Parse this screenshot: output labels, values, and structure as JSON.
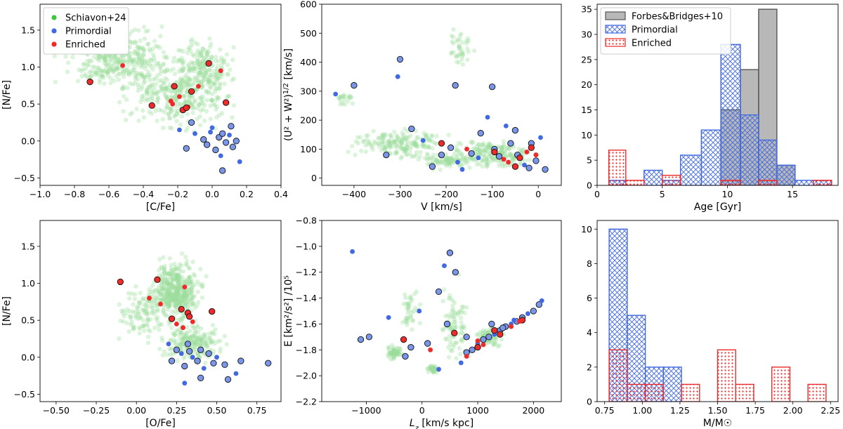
{
  "colors": {
    "green": "#3cc63c",
    "green_faint": "#9bdc9b",
    "blue": "#4169e1",
    "blue_light": "#7a96e8",
    "red": "#ee2a2a",
    "grey": "#b5b5b5"
  },
  "chart_data": [
    {
      "type": "scatter",
      "id": "a",
      "xlabel": "[C/Fe]",
      "ylabel": "[N/Fe]",
      "xlim": [
        -1.0,
        0.4
      ],
      "ylim": [
        -0.6,
        1.85
      ],
      "xticks": [
        "-1.0",
        "-0.8",
        "-0.6",
        "-0.4",
        "-0.2",
        "0.0",
        "0.2",
        "0.4"
      ],
      "yticks": [
        "-0.5",
        "0.0",
        "0.5",
        "1.0",
        "1.5"
      ],
      "legend": [
        "Schiavon+24",
        "Primordial",
        "Enriched"
      ],
      "enriched": [
        [
          -0.71,
          0.8
        ],
        [
          -0.52,
          1.02
        ],
        [
          -0.35,
          0.48
        ],
        [
          -0.24,
          0.54
        ],
        [
          -0.22,
          0.74
        ],
        [
          -0.19,
          0.6
        ],
        [
          -0.17,
          0.42
        ],
        [
          -0.14,
          0.46
        ],
        [
          -0.12,
          0.67
        ],
        [
          -0.08,
          0.74
        ],
        [
          -0.02,
          1.05
        ],
        [
          0.05,
          0.95
        ],
        [
          0.08,
          0.52
        ],
        [
          -0.23,
          0.5
        ],
        [
          -0.15,
          0.45
        ]
      ],
      "primordial": [
        [
          -0.19,
          0.15
        ],
        [
          -0.15,
          -0.1
        ],
        [
          -0.12,
          0.25
        ],
        [
          -0.1,
          0.1
        ],
        [
          -0.05,
          0.02
        ],
        [
          -0.03,
          -0.05
        ],
        [
          0.0,
          0.18
        ],
        [
          0.02,
          -0.12
        ],
        [
          0.04,
          0.05
        ],
        [
          0.05,
          -0.2
        ],
        [
          0.06,
          0.1
        ],
        [
          0.08,
          -0.02
        ],
        [
          0.1,
          0.08
        ],
        [
          0.12,
          -0.08
        ],
        [
          0.14,
          0.0
        ],
        [
          0.16,
          -0.28
        ],
        [
          0.06,
          -0.4
        ],
        [
          0.11,
          0.2
        ],
        [
          -0.01,
          0.12
        ]
      ]
    },
    {
      "type": "scatter",
      "id": "b",
      "xlabel": "V [km/s]",
      "ylabel": "(U² + W²)^1/2 [km/s]",
      "xlim": [
        -470,
        50
      ],
      "ylim": [
        -25,
        600
      ],
      "xticks": [
        "-400",
        "-300",
        "-200",
        "-100",
        "0"
      ],
      "yticks": [
        "0",
        "100",
        "200",
        "300",
        "400",
        "500",
        "600"
      ],
      "enriched": [
        [
          -210,
          120
        ],
        [
          -155,
          100
        ],
        [
          -95,
          90
        ],
        [
          -65,
          55
        ],
        [
          -40,
          70
        ],
        [
          -25,
          90
        ],
        [
          -15,
          105
        ],
        [
          -5,
          80
        ],
        [
          -50,
          40
        ],
        [
          -75,
          65
        ]
      ],
      "primordial": [
        [
          -440,
          290
        ],
        [
          -400,
          320
        ],
        [
          -330,
          80
        ],
        [
          -305,
          350
        ],
        [
          -300,
          410
        ],
        [
          -275,
          170
        ],
        [
          -250,
          130
        ],
        [
          -210,
          80
        ],
        [
          -190,
          105
        ],
        [
          -175,
          55
        ],
        [
          -145,
          85
        ],
        [
          -125,
          155
        ],
        [
          -110,
          210
        ],
        [
          -95,
          100
        ],
        [
          -85,
          75
        ],
        [
          -70,
          180
        ],
        [
          -60,
          120
        ],
        [
          -45,
          80
        ],
        [
          -30,
          45
        ],
        [
          -15,
          120
        ],
        [
          -5,
          60
        ],
        [
          5,
          140
        ],
        [
          15,
          30
        ],
        [
          -180,
          320
        ],
        [
          -130,
          70
        ],
        [
          -230,
          40
        ],
        [
          -100,
          315
        ],
        [
          -165,
          30
        ],
        [
          -50,
          165
        ],
        [
          -20,
          35
        ]
      ]
    },
    {
      "type": "histogram",
      "id": "c",
      "xlabel": "Age [Gyr]",
      "ylabel": "",
      "xlim": [
        0,
        18.5
      ],
      "ylim": [
        0,
        36
      ],
      "xticks": [
        "0",
        "5",
        "10",
        "15"
      ],
      "yticks": [
        "0",
        "5",
        "10",
        "15",
        "20",
        "25",
        "30",
        "35"
      ],
      "legend": [
        "Forbes&Bridges+10",
        "Primordial",
        "Enriched"
      ],
      "series": [
        {
          "name": "Forbes&Bridges+10",
          "bins": [
            [
              9.5,
              11.0,
              15
            ],
            [
              11.0,
              12.4,
              23
            ],
            [
              12.4,
              13.8,
              35
            ],
            [
              13.8,
              15.2,
              4
            ]
          ]
        },
        {
          "name": "Primordial",
          "bins": [
            [
              0.9,
              2.2,
              1
            ],
            [
              3.6,
              5.0,
              3
            ],
            [
              5.0,
              6.4,
              1
            ],
            [
              6.4,
              8.0,
              6
            ],
            [
              8.0,
              9.5,
              11
            ],
            [
              9.5,
              11.0,
              28
            ],
            [
              11.0,
              12.4,
              14
            ],
            [
              12.4,
              13.8,
              9
            ],
            [
              13.8,
              15.2,
              4
            ],
            [
              15.2,
              16.6,
              1
            ],
            [
              16.6,
              18.0,
              1
            ]
          ]
        },
        {
          "name": "Enriched",
          "bins": [
            [
              0.9,
              2.2,
              7
            ],
            [
              2.2,
              3.6,
              1
            ],
            [
              5.0,
              6.4,
              2
            ],
            [
              9.5,
              11.0,
              1
            ],
            [
              12.4,
              13.8,
              1
            ],
            [
              16.6,
              18.0,
              1
            ]
          ]
        }
      ]
    },
    {
      "type": "scatter",
      "id": "d",
      "xlabel": "[O/Fe]",
      "ylabel": "[N/Fe]",
      "xlim": [
        -0.6,
        0.9
      ],
      "ylim": [
        -0.6,
        1.85
      ],
      "xticks": [
        "-0.50",
        "-0.25",
        "0.00",
        "0.25",
        "0.50",
        "0.75"
      ],
      "yticks": [
        "-0.5",
        "0.0",
        "0.5",
        "1.0",
        "1.5"
      ],
      "enriched": [
        [
          -0.1,
          1.02
        ],
        [
          0.08,
          0.8
        ],
        [
          0.13,
          1.05
        ],
        [
          0.15,
          0.72
        ],
        [
          0.22,
          0.52
        ],
        [
          0.25,
          0.45
        ],
        [
          0.28,
          0.65
        ],
        [
          0.3,
          0.95
        ],
        [
          0.32,
          0.6
        ],
        [
          0.35,
          0.48
        ],
        [
          0.47,
          0.62
        ],
        [
          0.29,
          0.4
        ],
        [
          0.33,
          0.55
        ]
      ],
      "primordial": [
        [
          0.2,
          0.18
        ],
        [
          0.22,
          -0.05
        ],
        [
          0.25,
          0.1
        ],
        [
          0.28,
          0.05
        ],
        [
          0.3,
          -0.12
        ],
        [
          0.32,
          0.18
        ],
        [
          0.35,
          0.0
        ],
        [
          0.38,
          -0.05
        ],
        [
          0.4,
          0.1
        ],
        [
          0.42,
          -0.15
        ],
        [
          0.45,
          0.05
        ],
        [
          0.48,
          -0.08
        ],
        [
          0.5,
          0.0
        ],
        [
          0.55,
          -0.1
        ],
        [
          0.57,
          -0.3
        ],
        [
          0.62,
          -0.22
        ],
        [
          0.65,
          -0.05
        ],
        [
          0.82,
          -0.08
        ],
        [
          0.3,
          -0.35
        ],
        [
          0.4,
          -0.28
        ],
        [
          0.33,
          0.08
        ]
      ]
    },
    {
      "type": "scatter",
      "id": "e",
      "xlabel": "Lz [km/s kpc]",
      "ylabel": "E [km²/s²] /10⁵",
      "xlim": [
        -1800,
        2500
      ],
      "ylim": [
        -2.2,
        -0.8
      ],
      "xticks": [
        "-1000",
        "0",
        "1000",
        "2000"
      ],
      "yticks": [
        "-2.2",
        "-2.0",
        "-1.8",
        "-1.6",
        "-1.4",
        "-1.2",
        "-1.0",
        "-0.8"
      ],
      "enriched": [
        [
          -330,
          -1.72
        ],
        [
          150,
          -1.8
        ],
        [
          580,
          -1.67
        ],
        [
          800,
          -1.85
        ],
        [
          1000,
          -1.78
        ],
        [
          1100,
          -1.76
        ],
        [
          1300,
          -1.65
        ],
        [
          1600,
          -1.62
        ],
        [
          1800,
          -1.57
        ],
        [
          1000,
          -1.73
        ],
        [
          1400,
          -1.68
        ],
        [
          1750,
          -1.58
        ]
      ],
      "primordial": [
        [
          -1250,
          -1.04
        ],
        [
          -1100,
          -1.72
        ],
        [
          -950,
          -1.7
        ],
        [
          -600,
          -1.55
        ],
        [
          -300,
          -1.85
        ],
        [
          -200,
          -1.78
        ],
        [
          -50,
          -1.5
        ],
        [
          100,
          -1.75
        ],
        [
          300,
          -1.35
        ],
        [
          400,
          -1.15
        ],
        [
          500,
          -1.05
        ],
        [
          600,
          -1.2
        ],
        [
          700,
          -1.9
        ],
        [
          800,
          -1.82
        ],
        [
          900,
          -1.8
        ],
        [
          1000,
          -1.75
        ],
        [
          1100,
          -1.72
        ],
        [
          1200,
          -1.7
        ],
        [
          1300,
          -1.68
        ],
        [
          1400,
          -1.65
        ],
        [
          1500,
          -1.62
        ],
        [
          1600,
          -1.6
        ],
        [
          1700,
          -1.58
        ],
        [
          1800,
          -1.55
        ],
        [
          1900,
          -1.52
        ],
        [
          2000,
          -1.5
        ],
        [
          2100,
          -1.45
        ],
        [
          2150,
          -1.42
        ],
        [
          1250,
          -1.6
        ],
        [
          1450,
          -1.63
        ],
        [
          1650,
          -1.57
        ],
        [
          450,
          -1.6
        ],
        [
          800,
          -1.7
        ],
        [
          300,
          -1.95
        ]
      ]
    },
    {
      "type": "histogram",
      "id": "f",
      "xlabel": "M/M☉",
      "ylabel": "",
      "xlim": [
        0.7,
        2.3
      ],
      "ylim": [
        0,
        10.5
      ],
      "xticks": [
        "0.75",
        "1.00",
        "1.25",
        "1.50",
        "1.75",
        "2.00",
        "2.25"
      ],
      "yticks": [
        "0",
        "2",
        "4",
        "6",
        "8",
        "10"
      ],
      "series": [
        {
          "name": "Primordial",
          "bins": [
            [
              0.78,
              0.9,
              10
            ],
            [
              0.9,
              1.02,
              5
            ],
            [
              1.02,
              1.14,
              2
            ],
            [
              1.14,
              1.26,
              2
            ]
          ]
        },
        {
          "name": "Enriched",
          "bins": [
            [
              0.78,
              0.9,
              3
            ],
            [
              0.9,
              1.02,
              1
            ],
            [
              1.02,
              1.14,
              1
            ],
            [
              1.26,
              1.38,
              1
            ],
            [
              1.5,
              1.62,
              3
            ],
            [
              1.62,
              1.74,
              1
            ],
            [
              1.86,
              1.98,
              2
            ],
            [
              2.1,
              2.22,
              1
            ]
          ]
        }
      ]
    }
  ]
}
